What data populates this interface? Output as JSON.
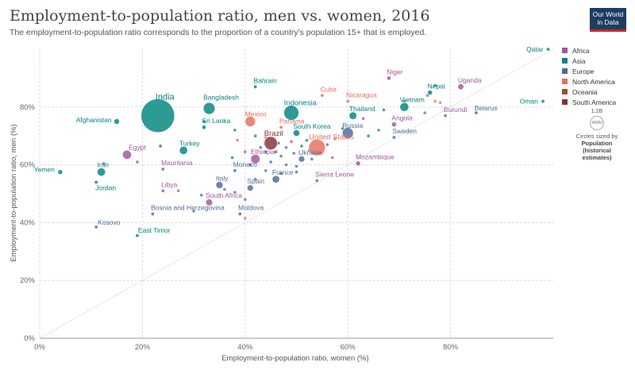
{
  "header": {
    "title": "Employment-to-population ratio, men vs. women, 2016",
    "subtitle": "The employment-to-population ratio corresponds to the proportion of a country's population 15+ that is employed.",
    "logo_line1": "Our World",
    "logo_line2": "in Data"
  },
  "colors": {
    "Africa": "#a2559c",
    "Asia": "#00847e",
    "Europe": "#4c6a9c",
    "North America": "#e56e5a",
    "Oceania": "#9a5129",
    "South America": "#883039"
  },
  "legend": {
    "items": [
      "Africa",
      "Asia",
      "Europe",
      "North America",
      "Oceania",
      "South America"
    ]
  },
  "size_legend": {
    "scale": "1:2B",
    "circle_label": "400M",
    "caption": "Circles sized by",
    "variable_line1": "Population",
    "variable_line2": "(historical",
    "variable_line3": "estimates)"
  },
  "chart_data": {
    "type": "scatter",
    "title": "Employment-to-population ratio, men vs. women, 2016",
    "xlabel": "Employment-to-population ratio, women (%)",
    "ylabel": "Employment-to-population ratio, men (%)",
    "xlim": [
      0,
      100
    ],
    "ylim": [
      0,
      100
    ],
    "xticks": [
      "0%",
      "20%",
      "40%",
      "60%",
      "80%"
    ],
    "yticks": [
      "0%",
      "20%",
      "40%",
      "60%",
      "80%"
    ],
    "reference_line": "y = x",
    "legend_position": "right",
    "points": [
      {
        "name": "India",
        "x": 23,
        "y": 77,
        "region": "Asia",
        "pop": 1324
      },
      {
        "name": "Bahrain",
        "x": 42,
        "y": 87,
        "region": "Asia",
        "pop": 1.4
      },
      {
        "name": "Bangladesh",
        "x": 33,
        "y": 79.5,
        "region": "Asia",
        "pop": 163
      },
      {
        "name": "Indonesia",
        "x": 49,
        "y": 78,
        "region": "Asia",
        "pop": 261
      },
      {
        "name": "Afghanistan",
        "x": 15,
        "y": 75,
        "region": "Asia",
        "pop": 35
      },
      {
        "name": "Sri Lanka",
        "x": 32,
        "y": 73,
        "region": "Asia",
        "pop": 21
      },
      {
        "name": "Thailand",
        "x": 61,
        "y": 77,
        "region": "Asia",
        "pop": 69
      },
      {
        "name": "Vietnam",
        "x": 71,
        "y": 80,
        "region": "Asia",
        "pop": 93
      },
      {
        "name": "Nepal",
        "x": 76,
        "y": 85,
        "region": "Asia",
        "pop": 29
      },
      {
        "name": "Qatar",
        "x": 99,
        "y": 100,
        "region": "Asia",
        "pop": 2.6
      },
      {
        "name": "Oman",
        "x": 98,
        "y": 82,
        "region": "Asia",
        "pop": 4.4
      },
      {
        "name": "South Korea",
        "x": 50,
        "y": 71,
        "region": "Asia",
        "pop": 51
      },
      {
        "name": "Turkey",
        "x": 28,
        "y": 65,
        "region": "Asia",
        "pop": 80
      },
      {
        "name": "Iran",
        "x": 12,
        "y": 57.5,
        "region": "Asia",
        "pop": 80
      },
      {
        "name": "Yemen",
        "x": 4,
        "y": 57.5,
        "region": "Asia",
        "pop": 27
      },
      {
        "name": "Jordan",
        "x": 11,
        "y": 54,
        "region": "Asia",
        "pop": 9.5
      },
      {
        "name": "Niger",
        "x": 68,
        "y": 90,
        "region": "Africa",
        "pop": 21
      },
      {
        "name": "Uganda",
        "x": 82,
        "y": 87,
        "region": "Africa",
        "pop": 41
      },
      {
        "name": "Burundi",
        "x": 79,
        "y": 77,
        "region": "Africa",
        "pop": 10.5
      },
      {
        "name": "Angola",
        "x": 69,
        "y": 74,
        "region": "Africa",
        "pop": 29
      },
      {
        "name": "Egypt",
        "x": 17,
        "y": 63.5,
        "region": "Africa",
        "pop": 95
      },
      {
        "name": "Mauritania",
        "x": 24,
        "y": 58.5,
        "region": "Africa",
        "pop": 4.3
      },
      {
        "name": "Libya",
        "x": 24,
        "y": 51,
        "region": "Africa",
        "pop": 6.3
      },
      {
        "name": "South Africa",
        "x": 33,
        "y": 47,
        "region": "Africa",
        "pop": 56
      },
      {
        "name": "Ethiopia",
        "x": 42,
        "y": 62,
        "region": "Africa",
        "pop": 102
      },
      {
        "name": "Mozambique",
        "x": 62,
        "y": 60.5,
        "region": "Africa",
        "pop": 28
      },
      {
        "name": "Sierra Leone",
        "x": 54,
        "y": 54.5,
        "region": "Africa",
        "pop": 7.4
      },
      {
        "name": "Cuba",
        "x": 55,
        "y": 84,
        "region": "North America",
        "pop": 11.4
      },
      {
        "name": "Nicaragua",
        "x": 60,
        "y": 82,
        "region": "North America",
        "pop": 6.2
      },
      {
        "name": "Mexico",
        "x": 41,
        "y": 75,
        "region": "North America",
        "pop": 127
      },
      {
        "name": "Panama",
        "x": 47,
        "y": 73,
        "region": "North America",
        "pop": 4
      },
      {
        "name": "United States",
        "x": 54,
        "y": 66,
        "region": "North America",
        "pop": 323
      },
      {
        "name": "Brazil",
        "x": 45,
        "y": 67.5,
        "region": "South America",
        "pop": 207
      },
      {
        "name": "Russia",
        "x": 60,
        "y": 71,
        "region": "Europe",
        "pop": 144
      },
      {
        "name": "Sweden",
        "x": 69,
        "y": 69.5,
        "region": "Europe",
        "pop": 9.9
      },
      {
        "name": "Belarus",
        "x": 85,
        "y": 78,
        "region": "Europe",
        "pop": 9.5
      },
      {
        "name": "Ukraine",
        "x": 51,
        "y": 62,
        "region": "Europe",
        "pop": 45
      },
      {
        "name": "France",
        "x": 46,
        "y": 55,
        "region": "Europe",
        "pop": 66
      },
      {
        "name": "Monaco",
        "x": 38,
        "y": 58,
        "region": "Europe",
        "pop": 0.04
      },
      {
        "name": "Spain",
        "x": 41,
        "y": 52,
        "region": "Europe",
        "pop": 46
      },
      {
        "name": "Italy",
        "x": 35,
        "y": 53,
        "region": "Europe",
        "pop": 60
      },
      {
        "name": "Bosnia and Herzegovina",
        "x": 22,
        "y": 43,
        "region": "Europe",
        "pop": 3.5
      },
      {
        "name": "Moldova",
        "x": 39,
        "y": 43,
        "region": "Europe",
        "pop": 3.5
      },
      {
        "name": "Kosovo",
        "x": 11,
        "y": 38.5,
        "region": "Europe",
        "pop": 1.8
      },
      {
        "name": "East Timor",
        "x": 19,
        "y": 35.5,
        "region": "Asia",
        "pop": 1.2
      }
    ],
    "minor_points": [
      {
        "x": 23.5,
        "y": 66.5,
        "region": "South America"
      },
      {
        "x": 19,
        "y": 61,
        "region": "Africa"
      },
      {
        "x": 12.5,
        "y": 60.5,
        "region": "Africa"
      },
      {
        "x": 32,
        "y": 75,
        "region": "Asia"
      },
      {
        "x": 38,
        "y": 72,
        "region": "Asia"
      },
      {
        "x": 37.5,
        "y": 62.5,
        "region": "Asia"
      },
      {
        "x": 38.5,
        "y": 68.5,
        "region": "North America"
      },
      {
        "x": 40,
        "y": 64.5,
        "region": "Africa"
      },
      {
        "x": 41,
        "y": 60,
        "region": "Europe"
      },
      {
        "x": 42,
        "y": 70,
        "region": "Asia"
      },
      {
        "x": 43,
        "y": 66,
        "region": "Asia"
      },
      {
        "x": 44,
        "y": 64.5,
        "region": "Asia"
      },
      {
        "x": 44,
        "y": 69.5,
        "region": "North America"
      },
      {
        "x": 45,
        "y": 61,
        "region": "Europe"
      },
      {
        "x": 46,
        "y": 64.5,
        "region": "Europe"
      },
      {
        "x": 46.5,
        "y": 67.5,
        "region": "Asia"
      },
      {
        "x": 47,
        "y": 63,
        "region": "Europe"
      },
      {
        "x": 48,
        "y": 66,
        "region": "Europe"
      },
      {
        "x": 48,
        "y": 60,
        "region": "Europe"
      },
      {
        "x": 49,
        "y": 68,
        "region": "Africa"
      },
      {
        "x": 49.5,
        "y": 64,
        "region": "Europe"
      },
      {
        "x": 50,
        "y": 59.5,
        "region": "Europe"
      },
      {
        "x": 51,
        "y": 66.5,
        "region": "Asia"
      },
      {
        "x": 52,
        "y": 68.5,
        "region": "Asia"
      },
      {
        "x": 52.5,
        "y": 65,
        "region": "Europe"
      },
      {
        "x": 53,
        "y": 62,
        "region": "Europe"
      },
      {
        "x": 55,
        "y": 64,
        "region": "North America"
      },
      {
        "x": 56,
        "y": 67,
        "region": "Europe"
      },
      {
        "x": 57,
        "y": 62.5,
        "region": "Africa"
      },
      {
        "x": 57.5,
        "y": 69,
        "region": "North America"
      },
      {
        "x": 59,
        "y": 72.5,
        "region": "Asia"
      },
      {
        "x": 63,
        "y": 76,
        "region": "Africa"
      },
      {
        "x": 64,
        "y": 70,
        "region": "Asia"
      },
      {
        "x": 66,
        "y": 72,
        "region": "Europe"
      },
      {
        "x": 67,
        "y": 79,
        "region": "Asia"
      },
      {
        "x": 71,
        "y": 82,
        "region": "Africa"
      },
      {
        "x": 75,
        "y": 78,
        "region": "Africa"
      },
      {
        "x": 77,
        "y": 82,
        "region": "North America"
      },
      {
        "x": 78,
        "y": 81.5,
        "region": "North America"
      },
      {
        "x": 77,
        "y": 87.5,
        "region": "Asia"
      },
      {
        "x": 75.5,
        "y": 84,
        "region": "Africa"
      },
      {
        "x": 36,
        "y": 51.5,
        "region": "Europe"
      },
      {
        "x": 38,
        "y": 50.5,
        "region": "Europe"
      },
      {
        "x": 31.5,
        "y": 49.5,
        "region": "Europe"
      },
      {
        "x": 40,
        "y": 48,
        "region": "Europe"
      },
      {
        "x": 27,
        "y": 51,
        "region": "Africa"
      },
      {
        "x": 30,
        "y": 44,
        "region": "Europe"
      },
      {
        "x": 40,
        "y": 41.5,
        "region": "North America"
      },
      {
        "x": 47,
        "y": 57,
        "region": "Europe"
      },
      {
        "x": 44,
        "y": 58,
        "region": "Europe"
      },
      {
        "x": 42,
        "y": 55,
        "region": "Europe"
      },
      {
        "x": 50,
        "y": 57.5,
        "region": "Europe"
      }
    ]
  }
}
